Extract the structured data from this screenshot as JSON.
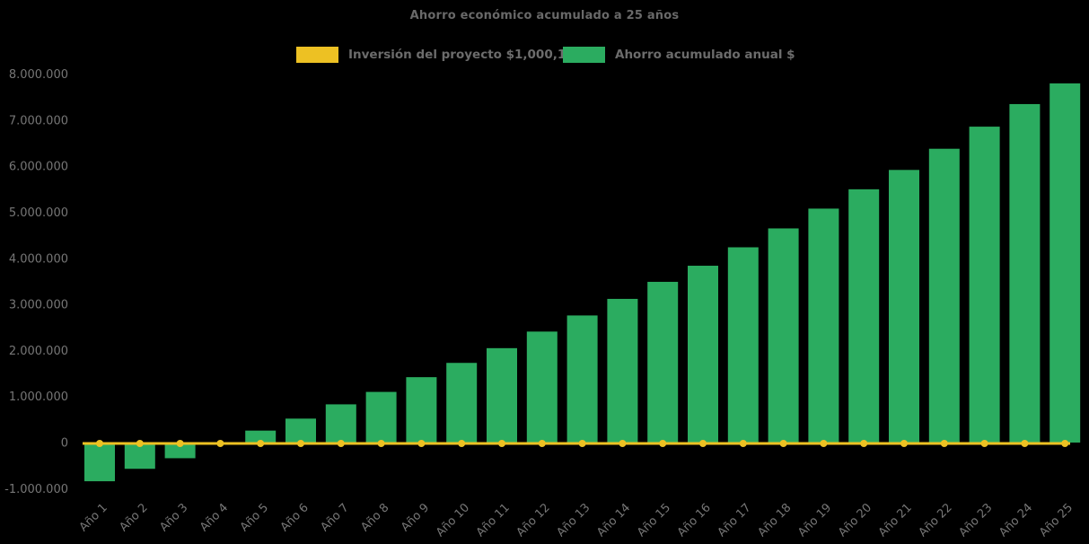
{
  "chart_data": {
    "type": "bar",
    "title": "Ahorro económico acumulado a 25 años",
    "categories": [
      "Año 1",
      "Año 2",
      "Año 3",
      "Año 4",
      "Año 5",
      "Año 6",
      "Año 7",
      "Año 8",
      "Año 9",
      "Año 10",
      "Año 11",
      "Año 12",
      "Año 13",
      "Año 14",
      "Año 15",
      "Año 16",
      "Año 17",
      "Año 18",
      "Año 19",
      "Año 20",
      "Año 21",
      "Año 22",
      "Año 23",
      "Año 24",
      "Año 25"
    ],
    "series": [
      {
        "name": "Inversión del proyecto $1,000,198.00",
        "type": "line",
        "marker": "circle",
        "color": "#EDC123",
        "values": [
          0,
          0,
          0,
          0,
          0,
          0,
          0,
          0,
          0,
          0,
          0,
          0,
          0,
          0,
          0,
          0,
          0,
          0,
          0,
          0,
          0,
          0,
          0,
          0,
          0
        ]
      },
      {
        "name": "Ahorro acumulado anual $",
        "type": "bar",
        "color": "#2BAC60",
        "values": [
          -840000,
          -570000,
          -340000,
          -40000,
          260000,
          520000,
          830000,
          1100000,
          1420000,
          1730000,
          2050000,
          2410000,
          2760000,
          3120000,
          3490000,
          3840000,
          4240000,
          4650000,
          5080000,
          5500000,
          5920000,
          6380000,
          6860000,
          7350000,
          7800000
        ]
      }
    ],
    "ylim": [
      -1000000,
      8000000
    ],
    "ytick_interval": 1000000,
    "ytick_labels": [
      "8.000.000",
      "7.000.000",
      "6.000.000",
      "5.000.000",
      "4.000.000",
      "3.000.000",
      "2.000.000",
      "1.000.000",
      "0",
      "-1.000.000"
    ],
    "xlabel": "",
    "ylabel": "",
    "grid": false,
    "legend_position": "top-center",
    "background_color": "#000000",
    "axis_text_color": "#767676",
    "title_text_color": "#696969",
    "legend_text_color": "#6C6C6C"
  }
}
